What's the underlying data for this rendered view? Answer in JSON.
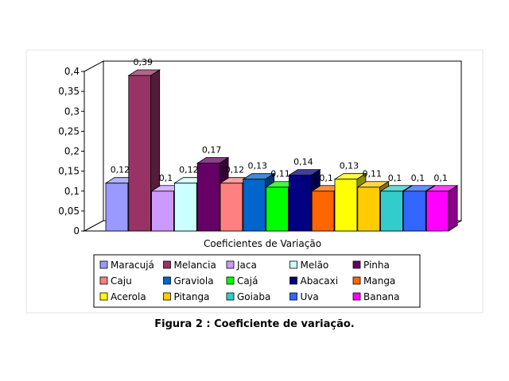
{
  "chart_data": {
    "type": "bar",
    "categories": [
      "Maracujá",
      "Melancia",
      "Jaca",
      "Melão",
      "Pinha",
      "Caju",
      "Graviola",
      "Cajá",
      "Abacaxi",
      "Manga",
      "Acerola",
      "Pitanga",
      "Goiaba",
      "Uva",
      "Banana"
    ],
    "values": [
      0.12,
      0.39,
      0.1,
      0.12,
      0.17,
      0.12,
      0.13,
      0.11,
      0.14,
      0.1,
      0.13,
      0.11,
      0.1,
      0.1,
      0.1
    ],
    "data_labels": [
      "0,12",
      "0,39",
      "0,1",
      "0,12",
      "0,17",
      "0,12",
      "0,13",
      "0,11",
      "0,14",
      "0,1",
      "0,13",
      "0,11",
      "0,1",
      "0,1",
      "0,1"
    ],
    "colors": [
      "#9999ff",
      "#993366",
      "#cc99ff",
      "#ccffff",
      "#660066",
      "#ff8080",
      "#0066cc",
      "#00ff00",
      "#000080",
      "#ff6600",
      "#ffff00",
      "#ffcc00",
      "#33cccc",
      "#3366ff",
      "#ff00ff"
    ],
    "ylim": [
      0,
      0.4
    ],
    "yticks": [
      "0",
      "0,05",
      "0,1",
      "0,15",
      "0,2",
      "0,25",
      "0,3",
      "0,35",
      "0,4"
    ],
    "xlabel": "Coeficientes de Variação",
    "ylabel": "",
    "legend_position": "bottom",
    "grid": false
  },
  "caption": "Figura 2 : Coeficiente de variação."
}
